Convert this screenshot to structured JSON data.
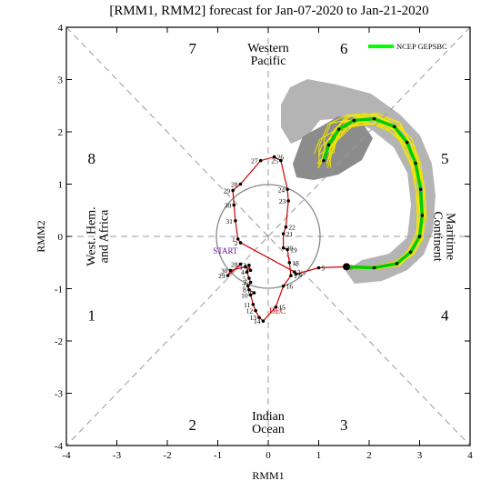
{
  "chart_data": {
    "type": "scatter",
    "title": "[RMM1, RMM2] forecast for Jan-07-2020 to Jan-21-2020",
    "xlabel": "RMM1",
    "ylabel": "RMM2",
    "xlim": [
      -4,
      4
    ],
    "ylim": [
      -4,
      4
    ],
    "xticks": [
      "-4",
      "-3",
      "-2",
      "-1",
      "0",
      "1",
      "2",
      "3",
      "4"
    ],
    "yticks": [
      "-4",
      "-3",
      "-2",
      "-1",
      "0",
      "1",
      "2",
      "3",
      "4"
    ],
    "grid": false,
    "legend": {
      "position": "top-right",
      "entries": [
        {
          "label": "NCEP GEPSBC",
          "color": "#00ff00"
        }
      ]
    },
    "phases": [
      {
        "label": "1",
        "x": -3.5,
        "y": -1.5
      },
      {
        "label": "2",
        "x": -1.5,
        "y": -3.6
      },
      {
        "label": "3",
        "x": 1.5,
        "y": -3.6
      },
      {
        "label": "4",
        "x": 3.5,
        "y": -1.5
      },
      {
        "label": "5",
        "x": 3.5,
        "y": 1.5
      },
      {
        "label": "6",
        "x": 1.5,
        "y": 3.6
      },
      {
        "label": "7",
        "x": -1.5,
        "y": 3.6
      },
      {
        "label": "8",
        "x": -3.5,
        "y": 1.5
      }
    ],
    "regions": [
      {
        "lines": [
          "Western",
          "Pacific"
        ],
        "x": 0.0,
        "y": 3.5,
        "rotate": 0
      },
      {
        "lines": [
          "Indian",
          "Ocean"
        ],
        "x": 0.0,
        "y": -3.55,
        "rotate": 0
      },
      {
        "lines": [
          "West. Hem.",
          "and Africa"
        ],
        "x": -3.4,
        "y": 0.0,
        "rotate": -90
      },
      {
        "lines": [
          "Maritime",
          "Continent"
        ],
        "x": 3.5,
        "y": 0.0,
        "rotate": 90
      }
    ],
    "annotations": [
      {
        "text": "START",
        "x": -0.85,
        "y": -0.33,
        "color": "#6a0dad"
      },
      {
        "text": "DEC",
        "x": 0.18,
        "y": -1.48,
        "color": "#cc0000"
      }
    ],
    "observed": {
      "color": "#cc0000",
      "points": [
        {
          "label": "28",
          "x": -0.55,
          "y": -0.53
        },
        {
          "label": "29",
          "x": -0.8,
          "y": -0.75
        },
        {
          "label": "30",
          "x": -0.75,
          "y": -0.65
        },
        {
          "label": "1",
          "x": -0.45,
          "y": -0.58
        },
        {
          "label": "2",
          "x": -0.35,
          "y": -0.65
        },
        {
          "label": "3",
          "x": -0.38,
          "y": -0.55
        },
        {
          "label": "4",
          "x": -0.42,
          "y": -0.68
        },
        {
          "label": "5",
          "x": -0.38,
          "y": -0.8
        },
        {
          "label": "6",
          "x": -0.35,
          "y": -0.88
        },
        {
          "label": "7",
          "x": -0.4,
          "y": -0.95
        },
        {
          "label": "8",
          "x": -0.38,
          "y": -1.02
        },
        {
          "label": "9",
          "x": -0.28,
          "y": -1.08
        },
        {
          "label": "10",
          "x": -0.35,
          "y": -1.12
        },
        {
          "label": "11",
          "x": -0.3,
          "y": -1.3
        },
        {
          "label": "12",
          "x": -0.25,
          "y": -1.42
        },
        {
          "label": "13",
          "x": -0.18,
          "y": -1.55
        },
        {
          "label": "14",
          "x": -0.1,
          "y": -1.62
        },
        {
          "label": "15",
          "x": 0.15,
          "y": -1.35
        },
        {
          "label": "16",
          "x": 0.3,
          "y": -0.95
        },
        {
          "label": "17",
          "x": 0.45,
          "y": -0.75
        },
        {
          "label": "18",
          "x": 0.42,
          "y": -0.5
        },
        {
          "label": "19",
          "x": 0.38,
          "y": -0.25
        },
        {
          "label": "20",
          "x": 0.3,
          "y": -0.22
        },
        {
          "label": "21",
          "x": 0.3,
          "y": 0.05
        },
        {
          "label": "22",
          "x": 0.35,
          "y": 0.18
        },
        {
          "label": "23",
          "x": 0.4,
          "y": 0.68
        },
        {
          "label": "24",
          "x": 0.38,
          "y": 0.9
        },
        {
          "label": "25",
          "x": 0.25,
          "y": 1.45
        },
        {
          "label": "26",
          "x": 0.12,
          "y": 1.52
        },
        {
          "label": "27",
          "x": -0.15,
          "y": 1.45
        },
        {
          "label": "28",
          "x": -0.55,
          "y": 1.0
        },
        {
          "label": "29",
          "x": -0.7,
          "y": 0.88
        },
        {
          "label": "30",
          "x": -0.68,
          "y": 0.6
        },
        {
          "label": "31",
          "x": -0.65,
          "y": 0.3
        },
        {
          "label": "1",
          "x": -0.6,
          "y": -0.05
        },
        {
          "label": "2",
          "x": -0.55,
          "y": -0.12
        },
        {
          "label": "3",
          "x": 0.52,
          "y": -0.68
        },
        {
          "label": "4",
          "x": 0.55,
          "y": -0.72
        },
        {
          "label": "5",
          "x": 1.0,
          "y": -0.6
        },
        {
          "label": "6",
          "x": 1.55,
          "y": -0.58
        }
      ]
    },
    "ensemble_mean": {
      "color": "#00cc00",
      "points": [
        {
          "x": 1.55,
          "y": -0.58
        },
        {
          "x": 2.1,
          "y": -0.6
        },
        {
          "x": 2.55,
          "y": -0.52
        },
        {
          "x": 2.82,
          "y": -0.3
        },
        {
          "x": 3.0,
          "y": 0.0
        },
        {
          "x": 3.05,
          "y": 0.4
        },
        {
          "x": 3.02,
          "y": 0.9
        },
        {
          "x": 2.92,
          "y": 1.4
        },
        {
          "x": 2.75,
          "y": 1.8
        },
        {
          "x": 2.5,
          "y": 2.1
        },
        {
          "x": 2.1,
          "y": 2.25
        },
        {
          "x": 1.7,
          "y": 2.22
        },
        {
          "x": 1.4,
          "y": 2.05
        },
        {
          "x": 1.2,
          "y": 1.75
        },
        {
          "x": 1.1,
          "y": 1.45
        }
      ]
    }
  }
}
